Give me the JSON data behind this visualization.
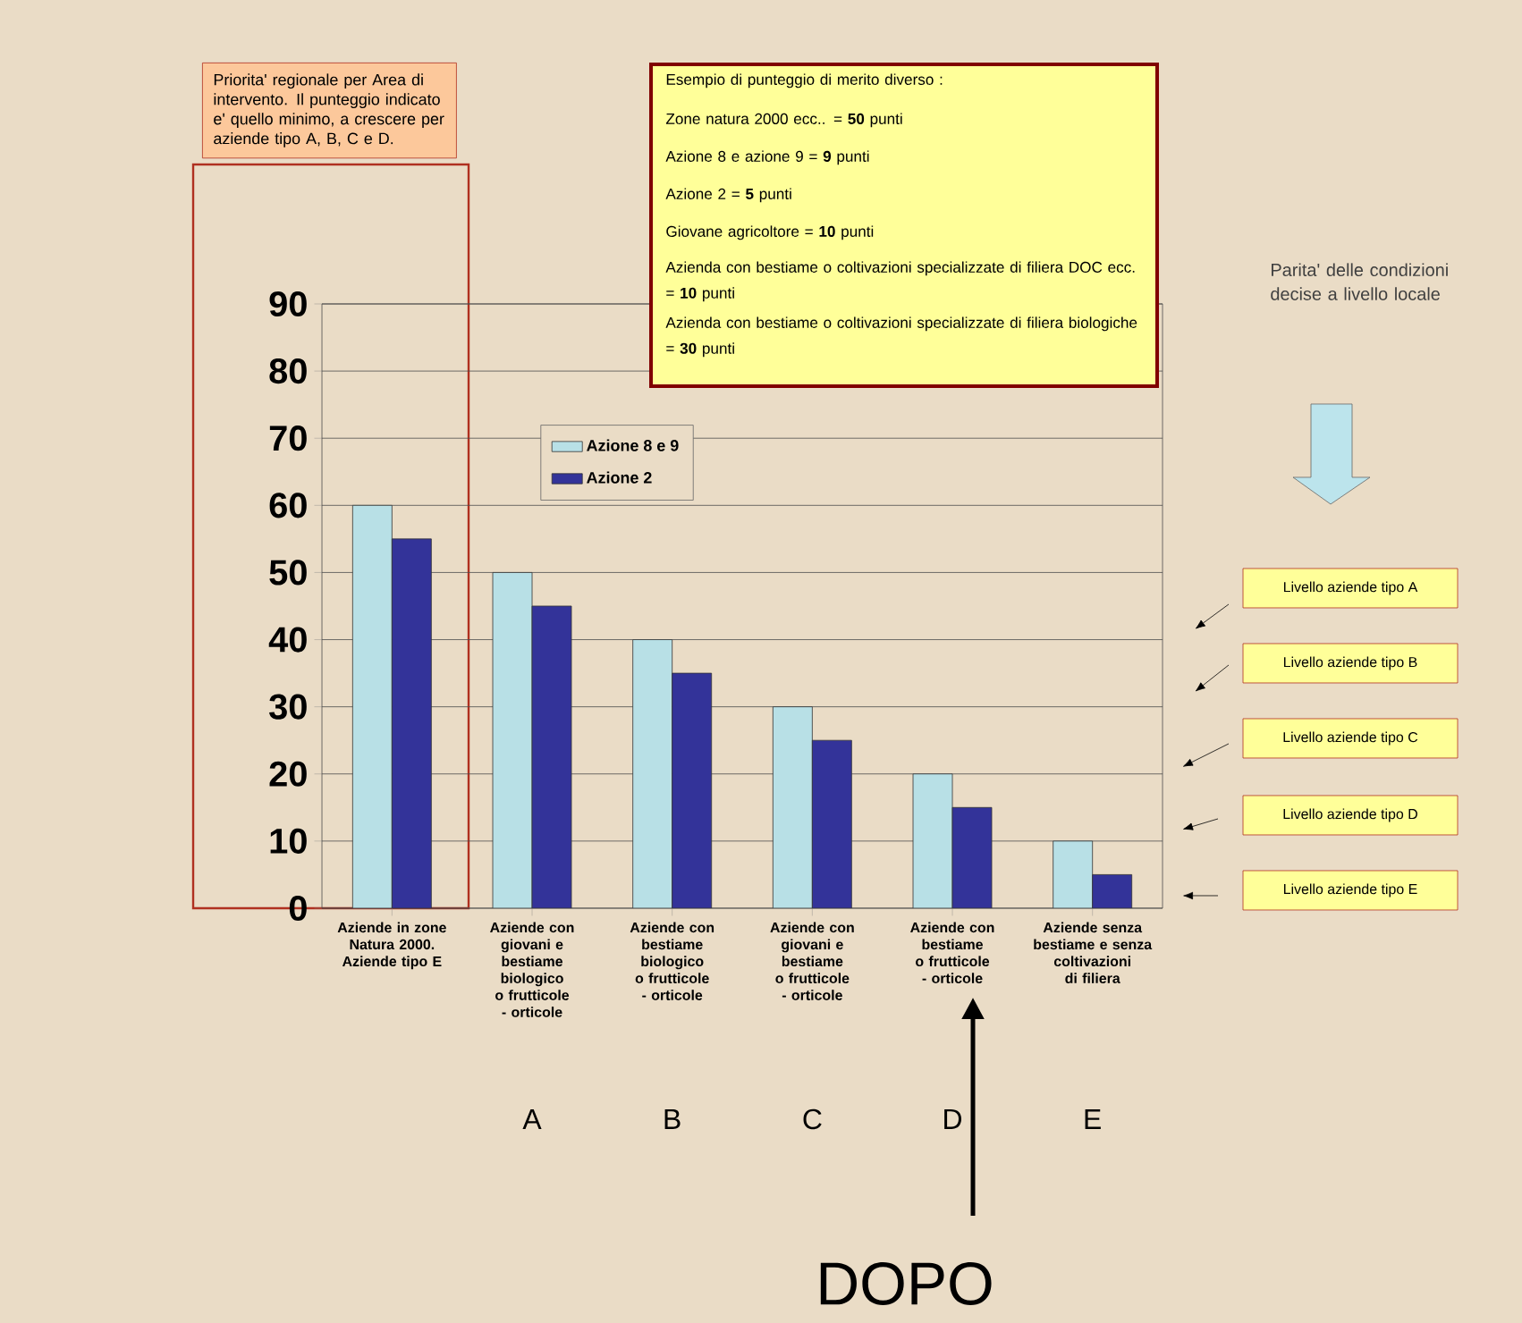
{
  "chart_data": {
    "type": "bar",
    "categories": [
      "Aziende in zone Natura 2000. Aziende tipo E",
      "Aziende con giovani e bestiame biologico o frutticole - orticole",
      "Aziende con bestiame biologico o frutticole - orticole",
      "Aziende con giovani e bestiame o frutticole - orticole",
      "Aziende con bestiame o frutticole - orticole",
      "Aziende senza bestiame e senza coltivazioni di filiera"
    ],
    "series": [
      {
        "name": "Azione 8 e 9",
        "color": "#b8e0e6",
        "values": [
          60,
          50,
          40,
          30,
          20,
          10
        ]
      },
      {
        "name": "Azione 2",
        "color": "#333399",
        "values": [
          55,
          45,
          35,
          25,
          15,
          5
        ]
      }
    ],
    "ylim": [
      0,
      90
    ],
    "yticks": [
      0,
      10,
      20,
      30,
      40,
      50,
      60,
      70,
      80,
      90
    ],
    "grid": "y",
    "legend": "top",
    "annotations": [
      "Priorita' regionale per Area di intervento. Il punteggio indicato e' quello minimo, a crescere per aziende tipo A, B, C e D.",
      "Esempio di punteggio di merito diverso :",
      "Zone natura 2000 ecc.. = **50** punti",
      "Azione 8 e azione 9 = **9** punti",
      "Azione 2 = **5** punti",
      "Giovane agricoltore = **10** punti",
      "Azienda con bestiame o coltivazioni specializzate di filiera DOC ecc. = **10** punti",
      "Azienda con bestiame o coltivazioni specializzate di filiera biologiche = **30** punti",
      "Parita' delle condizioni decise a livello locale",
      "Livello aziende tipo A",
      "Livello aziende tipo B",
      "Livello aziende tipo C",
      "Livello aziende tipo D",
      "Livello aziende tipo E",
      "A",
      "B",
      "C",
      "D",
      "E",
      "DOPO"
    ]
  }
}
